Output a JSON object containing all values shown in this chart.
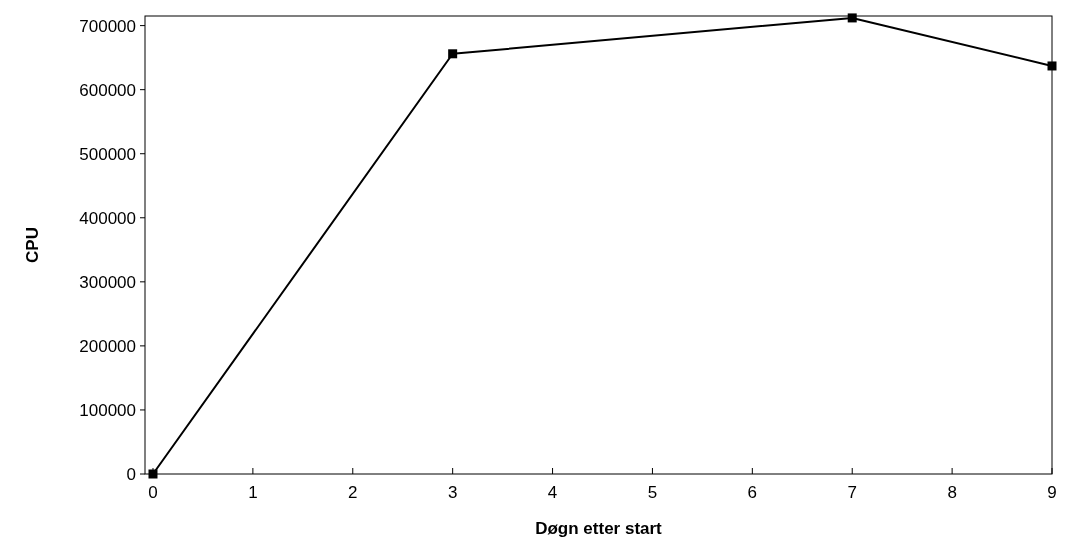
{
  "chart_data": {
    "type": "line",
    "xlabel": "Døgn etter start",
    "ylabel": "CPU",
    "x": [
      0,
      3,
      7,
      9
    ],
    "series": [
      {
        "color": "#000000",
        "values": [
          0,
          656000,
          712000,
          637000
        ]
      }
    ],
    "xlim": [
      -0.08,
      9
    ],
    "xticks": [
      0,
      1,
      2,
      3,
      4,
      5,
      6,
      7,
      8,
      9
    ],
    "ylim": [
      0,
      715000
    ],
    "yticks": [
      0,
      100000,
      200000,
      300000,
      400000,
      500000,
      600000,
      700000
    ],
    "grid": false,
    "marker": "square",
    "line_style": "solid"
  }
}
